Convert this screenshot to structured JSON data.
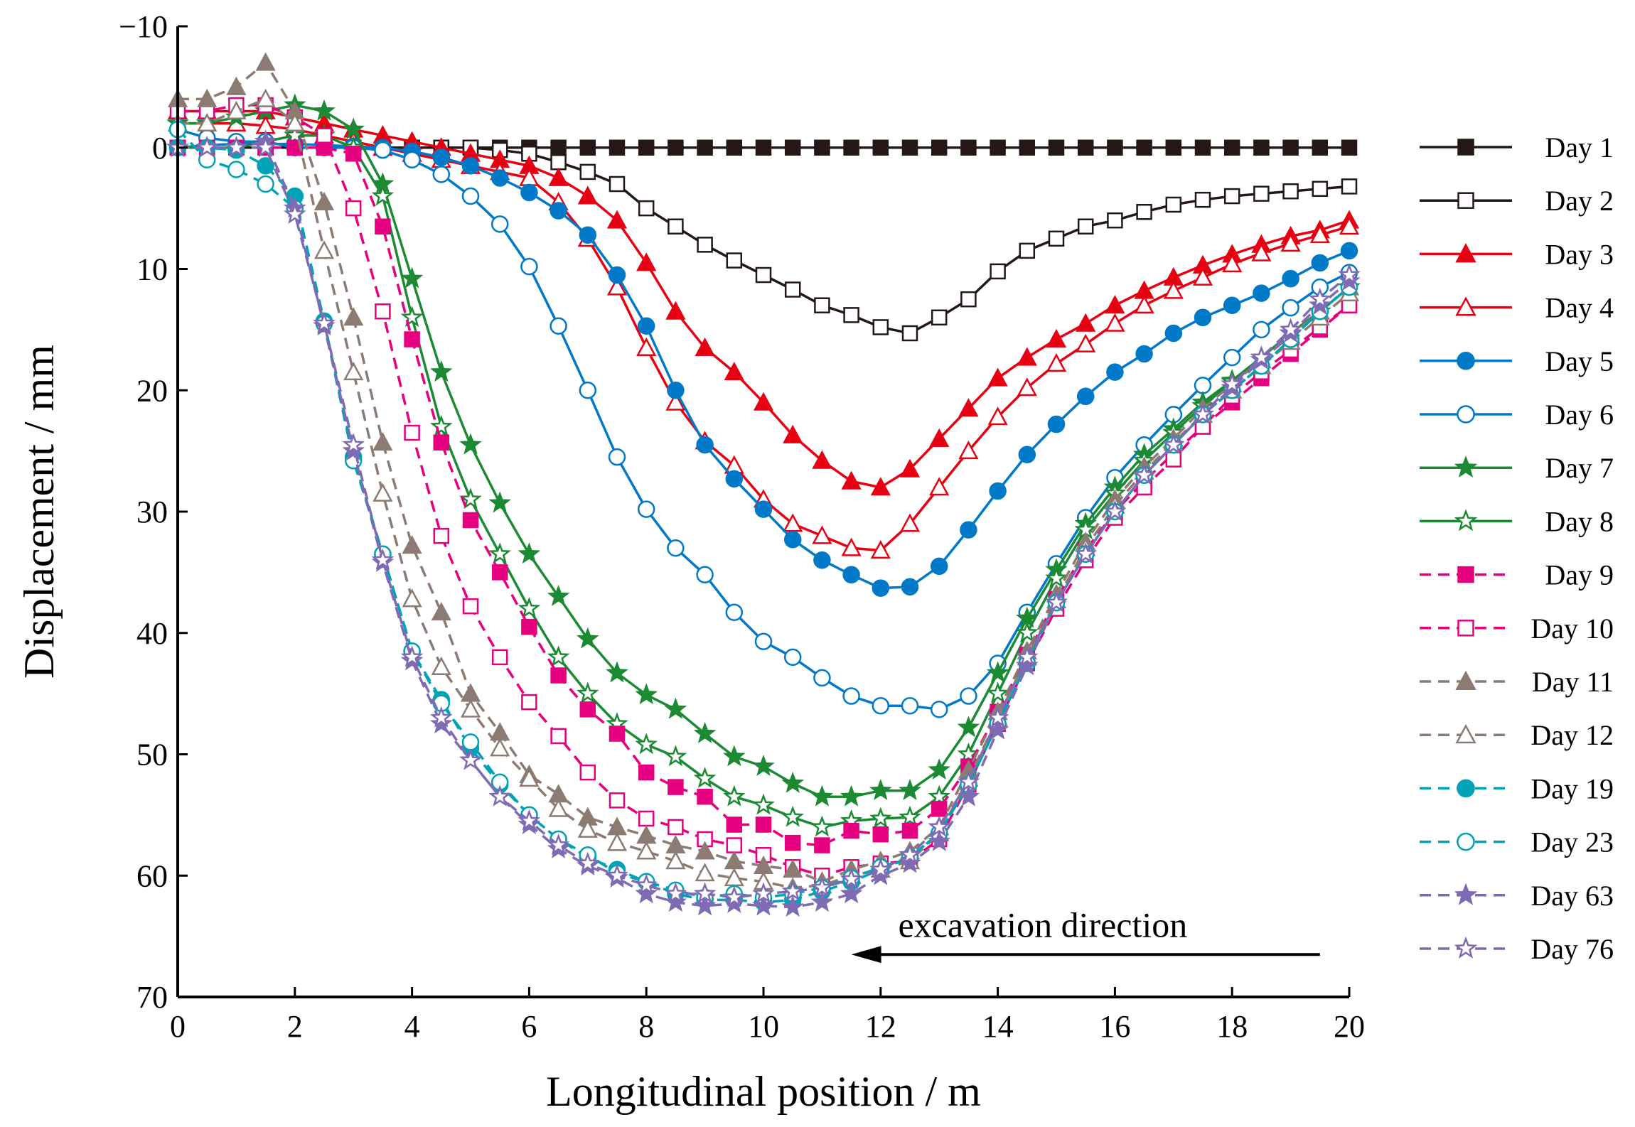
{
  "chart_data": {
    "type": "line",
    "title": "",
    "xlabel": "Longitudinal position / m",
    "ylabel": "Displacement / mm",
    "xlim": [
      0,
      20
    ],
    "ylim": [
      -10,
      70
    ],
    "y_inverted": true,
    "xticks": [
      0,
      2,
      4,
      6,
      8,
      10,
      12,
      14,
      16,
      18,
      20
    ],
    "yticks": [
      -10,
      0,
      10,
      20,
      30,
      40,
      50,
      60,
      70
    ],
    "ytick_labels": [
      "−10",
      "0",
      "10",
      "20",
      "30",
      "40",
      "50",
      "60",
      "70"
    ],
    "grid": false,
    "legend_position": "right",
    "annotation": {
      "text": "excavation direction",
      "arrow_from_x": 19.5,
      "arrow_to_x": 11.5,
      "arrow_y": 66.5,
      "text_x": 12.3,
      "text_y": 64
    },
    "x_step": 0.5,
    "series": [
      {
        "name": "Day 1",
        "color": "#231815",
        "marker": "square",
        "filled": true,
        "dashed": false,
        "values": [
          0,
          0,
          0,
          0,
          0,
          0,
          0,
          0,
          0,
          0,
          0,
          0,
          0,
          0,
          0,
          0,
          0,
          0,
          0,
          0,
          0,
          0,
          0,
          0,
          0,
          0,
          0,
          0,
          0,
          0,
          0,
          0,
          0,
          0,
          0,
          0,
          0,
          0,
          0,
          0,
          0
        ]
      },
      {
        "name": "Day 2",
        "color": "#231815",
        "marker": "square",
        "filled": false,
        "dashed": false,
        "values": [
          0,
          0,
          0,
          0,
          0,
          0,
          0,
          0,
          0,
          0,
          0,
          0.2,
          0.5,
          1.2,
          2,
          3,
          5,
          6.5,
          8,
          9.3,
          10.5,
          11.7,
          13,
          13.8,
          14.8,
          15.3,
          14,
          12.5,
          10.2,
          8.5,
          7.5,
          6.5,
          6,
          5.3,
          4.7,
          4.3,
          4,
          3.8,
          3.6,
          3.4,
          3.2
        ]
      },
      {
        "name": "Day 3",
        "color": "#e60012",
        "marker": "triangle",
        "filled": true,
        "dashed": false,
        "values": [
          -3,
          -3,
          -3,
          -3,
          -2.5,
          -2,
          -1.5,
          -1,
          -0.5,
          0,
          0.5,
          1,
          1.5,
          2.5,
          4,
          6,
          9.5,
          13.5,
          16.5,
          18.5,
          21,
          23.7,
          25.8,
          27.5,
          28,
          26.5,
          24,
          21.5,
          19,
          17.3,
          15.8,
          14.5,
          13,
          11.8,
          10.7,
          9.7,
          8.8,
          8,
          7.3,
          6.8,
          6
        ]
      },
      {
        "name": "Day 4",
        "color": "#e60012",
        "marker": "triangle",
        "filled": false,
        "dashed": false,
        "values": [
          -2,
          -2,
          -2,
          -1.8,
          -1.5,
          -1,
          -0.5,
          0,
          0.5,
          1,
          1.5,
          2,
          2.5,
          4.5,
          7.5,
          11.5,
          16.5,
          21,
          24.2,
          26.2,
          29,
          31,
          32,
          33,
          33.2,
          31,
          28,
          25,
          22.2,
          19.8,
          17.8,
          16.2,
          14.5,
          13,
          11.8,
          10.7,
          9.6,
          8.7,
          7.9,
          7.2,
          6.5
        ]
      },
      {
        "name": "Day 5",
        "color": "#0079c8",
        "marker": "circle",
        "filled": true,
        "dashed": false,
        "values": [
          0,
          -0.2,
          -0.3,
          -0.3,
          -0.3,
          -0.2,
          -0.1,
          0,
          0.3,
          0.8,
          1.5,
          2.5,
          3.7,
          5.2,
          7.2,
          10.5,
          14.7,
          20,
          24.5,
          27.3,
          29.8,
          32.3,
          34,
          35.2,
          36.3,
          36.2,
          34.5,
          31.5,
          28.3,
          25.3,
          22.8,
          20.5,
          18.5,
          17,
          15.3,
          14,
          13,
          12,
          10.8,
          9.5,
          8.5
        ]
      },
      {
        "name": "Day 6",
        "color": "#0079c8",
        "marker": "circle",
        "filled": false,
        "dashed": false,
        "values": [
          -1.5,
          -0.8,
          -0.5,
          -0.5,
          0,
          0,
          0,
          0.2,
          1,
          2.2,
          4,
          6.3,
          9.8,
          14.7,
          20,
          25.5,
          29.8,
          33,
          35.2,
          38.3,
          40.7,
          42,
          43.7,
          45.2,
          46,
          46,
          46.3,
          45.2,
          42.5,
          38.3,
          34.3,
          30.5,
          27.2,
          24.5,
          22,
          19.6,
          17.3,
          15,
          13.2,
          11.5,
          10.3
        ]
      },
      {
        "name": "Day 7",
        "color": "#1b8a33",
        "marker": "star",
        "filled": true,
        "dashed": false,
        "values": [
          -2,
          -2,
          -2.5,
          -3,
          -3.5,
          -3,
          -1.5,
          3,
          10.8,
          18.5,
          24.5,
          29.3,
          33.5,
          37,
          40.5,
          43.3,
          45.1,
          46.3,
          48.3,
          50.2,
          51,
          52.4,
          53.5,
          53.5,
          53,
          53,
          51.3,
          47.8,
          43.3,
          38.8,
          34.8,
          31,
          28,
          25.3,
          23.2,
          21,
          19.2,
          17.3,
          15.3,
          13.5,
          11.5
        ]
      },
      {
        "name": "Day 8",
        "color": "#1b8a33",
        "marker": "star",
        "filled": false,
        "dashed": false,
        "values": [
          0,
          0,
          0,
          -0.5,
          -1,
          -1,
          0,
          4,
          14,
          23,
          29,
          33.5,
          38,
          42,
          45,
          47.5,
          49.2,
          50.2,
          52,
          53.5,
          54.2,
          55.2,
          56,
          55.5,
          55.3,
          55.2,
          53.5,
          50,
          45,
          40,
          35.5,
          31.5,
          28.5,
          25.8,
          23.5,
          21.3,
          19.3,
          17.3,
          15.3,
          13.5,
          11.5
        ]
      },
      {
        "name": "Day 9",
        "color": "#e4007f",
        "marker": "square",
        "filled": true,
        "dashed": true,
        "values": [
          0,
          0,
          0,
          0,
          0,
          0,
          0.5,
          6.5,
          15.8,
          24.3,
          30.7,
          35,
          39.5,
          43.5,
          46.3,
          48.3,
          51.5,
          52.7,
          53.5,
          55.8,
          55.8,
          57.3,
          57.5,
          56.3,
          56.6,
          56.3,
          54.5,
          51,
          46.5,
          41.8,
          37.2,
          33.2,
          30,
          27.5,
          25.2,
          23,
          21,
          19,
          17,
          15,
          13
        ]
      },
      {
        "name": "Day 10",
        "color": "#e4007f",
        "marker": "square",
        "filled": false,
        "dashed": true,
        "values": [
          -3,
          -3,
          -3.5,
          -3.5,
          -2.5,
          -1,
          5,
          13.5,
          23.5,
          32,
          37.8,
          42,
          45.7,
          48.5,
          51.5,
          53.8,
          55.3,
          56,
          57,
          57.5,
          58.3,
          59.3,
          60,
          59.3,
          59,
          58.8,
          57,
          52.5,
          47.5,
          42.5,
          38,
          34,
          30.5,
          28,
          25.7,
          23,
          20.5,
          18.5,
          16.7,
          14.8,
          13
        ]
      },
      {
        "name": "Day 11",
        "color": "#8c7b72",
        "marker": "triangle",
        "filled": true,
        "dashed": true,
        "values": [
          -4,
          -4,
          -5,
          -7,
          -3,
          4.5,
          14,
          24.3,
          32.8,
          38.3,
          45,
          48.2,
          51.7,
          53.3,
          55.2,
          56,
          56.7,
          57.5,
          58,
          58.8,
          59.2,
          59.5,
          60.5,
          59.5,
          58.8,
          58,
          56,
          51.3,
          46.5,
          41.5,
          36.8,
          32.5,
          29,
          26.3,
          24,
          21.5,
          19.5,
          17.5,
          15.5,
          13.5,
          11.5
        ]
      },
      {
        "name": "Day 12",
        "color": "#8c7b72",
        "marker": "triangle",
        "filled": false,
        "dashed": true,
        "values": [
          -2,
          -2,
          -3,
          -4,
          -2,
          8.5,
          18.5,
          28.5,
          37.2,
          42.8,
          46.3,
          49.5,
          52,
          54.5,
          56.2,
          57.3,
          58,
          58.8,
          59.8,
          60.2,
          60.5,
          61,
          60.8,
          60,
          59.5,
          58.8,
          56.5,
          52,
          47,
          42,
          37.3,
          33,
          29.5,
          26.7,
          24.3,
          22,
          20,
          18,
          16,
          14,
          12
        ]
      },
      {
        "name": "Day 19",
        "color": "#00a3b5",
        "marker": "circle",
        "filled": true,
        "dashed": true,
        "values": [
          0,
          0,
          0.2,
          1.5,
          4,
          14.3,
          25.5,
          33.5,
          41.5,
          45.5,
          49.5,
          52.5,
          55,
          57,
          58.5,
          59.5,
          60.5,
          61.5,
          62,
          62,
          62.2,
          62,
          61.3,
          60.5,
          59.5,
          58.5,
          56.5,
          52.5,
          47.5,
          42.5,
          37.5,
          33.5,
          30,
          27,
          24.5,
          22,
          20,
          18,
          15.8,
          13.5,
          11.5
        ]
      },
      {
        "name": "Day 23",
        "color": "#00a3b5",
        "marker": "circle",
        "filled": false,
        "dashed": true,
        "values": [
          -1.5,
          1,
          1.8,
          3,
          5,
          14.5,
          25.8,
          33.5,
          41.5,
          45.8,
          49,
          52.3,
          55,
          57,
          58.3,
          59.8,
          60.5,
          61.2,
          61.8,
          61.5,
          61.8,
          61.5,
          61,
          60.2,
          59.3,
          58.5,
          56.5,
          52.5,
          47.5,
          42.5,
          37.5,
          33.5,
          30,
          27,
          24.5,
          22,
          20,
          18,
          15.8,
          13.5,
          11.5
        ]
      },
      {
        "name": "Day 63",
        "color": "#7f6bb3",
        "marker": "star",
        "filled": true,
        "dashed": true,
        "values": [
          0,
          0,
          0,
          -0.5,
          5,
          14.7,
          25,
          34.2,
          42.3,
          47.5,
          50.5,
          53.5,
          55.8,
          57.8,
          59.2,
          60.2,
          61.5,
          62.2,
          62.5,
          62.3,
          62.5,
          62.6,
          62.2,
          61.5,
          60,
          59,
          57.2,
          53.5,
          48,
          42.7,
          37.5,
          33.5,
          30,
          27,
          24.5,
          22,
          19.8,
          17.5,
          15.3,
          13,
          11
        ]
      },
      {
        "name": "Day 76",
        "color": "#7f6bb3",
        "marker": "star",
        "filled": false,
        "dashed": true,
        "values": [
          0,
          0,
          0,
          0,
          5.5,
          14.5,
          24.5,
          34,
          42,
          47,
          50.5,
          53.5,
          55.5,
          57.5,
          59,
          60,
          60.8,
          61.5,
          61.5,
          61.8,
          61.5,
          61.3,
          61,
          60.3,
          59.5,
          58.3,
          56,
          52.3,
          47,
          42,
          37.5,
          33.5,
          30,
          27,
          24.5,
          22,
          19.5,
          17.3,
          15,
          12.5,
          10.5
        ]
      }
    ]
  }
}
